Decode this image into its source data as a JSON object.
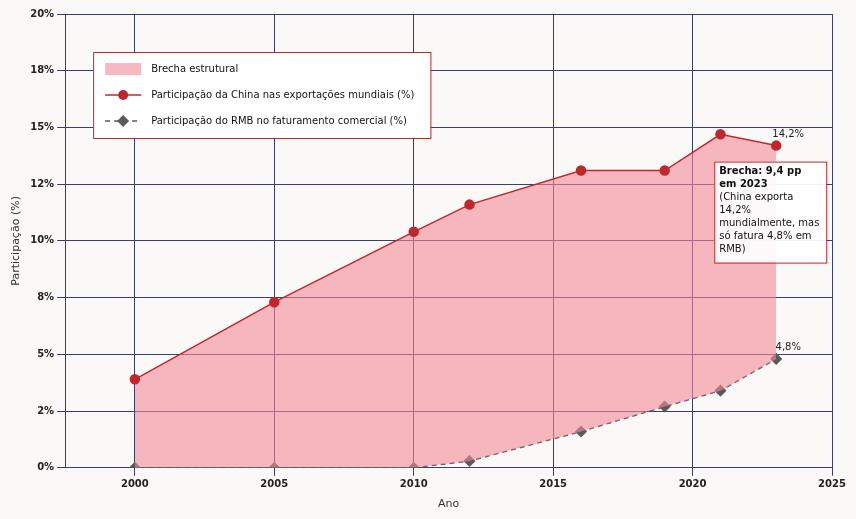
{
  "chart_data": {
    "type": "line",
    "x_label": "Ano",
    "y_label": "Participação (%)",
    "x": [
      2000,
      2005,
      2010,
      2012,
      2016,
      2019,
      2021,
      2023
    ],
    "xlim": [
      1997.5,
      2025
    ],
    "xticks": [
      2000,
      2005,
      2010,
      2015,
      2020,
      2025
    ],
    "ylim": [
      0,
      20
    ],
    "yticks": [
      {
        "value": 0,
        "label": "0%"
      },
      {
        "value": 2.5,
        "label": "2%"
      },
      {
        "value": 5,
        "label": "5%"
      },
      {
        "value": 7.5,
        "label": "8%"
      },
      {
        "value": 10,
        "label": "10%"
      },
      {
        "value": 12.5,
        "label": "12%"
      },
      {
        "value": 15,
        "label": "15%"
      },
      {
        "value": 17.5,
        "label": "18%"
      },
      {
        "value": 20,
        "label": "20%"
      }
    ],
    "grid": true,
    "legend": "top-left",
    "area": {
      "name": "Brecha estrutural",
      "color": "#f28b98"
    },
    "series": [
      {
        "name": "Participação da China nas exportações mundiais (%)",
        "color": "#c0272d",
        "marker": "circle",
        "line_style": "solid",
        "values": [
          3.9,
          7.3,
          10.4,
          11.6,
          13.1,
          13.1,
          14.7,
          14.2
        ],
        "value_labels": [
          null,
          null,
          null,
          null,
          null,
          null,
          null,
          "14,2%"
        ]
      },
      {
        "name": "Participação do RMB no faturamento comercial (%)",
        "color": "#5a5a5a",
        "marker": "diamond",
        "line_style": "dashed",
        "values": [
          0,
          0,
          0,
          0.3,
          1.6,
          2.7,
          3.4,
          4.8
        ],
        "value_labels": [
          null,
          null,
          null,
          null,
          null,
          null,
          null,
          "4,8%"
        ]
      }
    ],
    "annotation": {
      "title": "Brecha: 9,4 pp em 2023",
      "text": "(China exporta 14,2% mundialmente, mas só fatura 4,8% em RMB)"
    }
  }
}
